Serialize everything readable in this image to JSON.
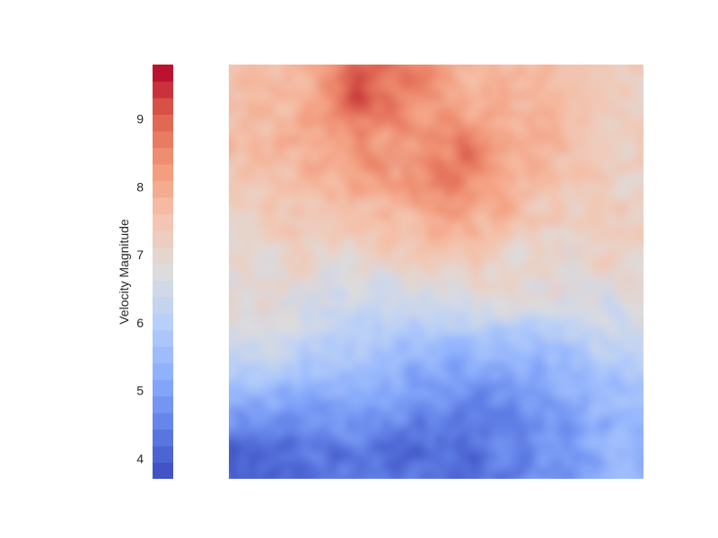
{
  "chart_data": {
    "type": "heatmap",
    "title": "",
    "xlabel": "",
    "ylabel": "",
    "colormap": "coolwarm",
    "value_range": [
      3.7,
      9.8
    ],
    "colorbar": {
      "label": "Velocity Magnitude",
      "ticks": [
        4,
        5,
        6,
        7,
        8,
        9
      ],
      "tick_labels": [
        "4",
        "5",
        "6",
        "7",
        "8",
        "9"
      ],
      "min": 3.7,
      "max": 9.8,
      "levels": 25
    },
    "grid": false,
    "grid_approx": {
      "rows": 8,
      "cols": 8,
      "orientation": "row 0 = top of image",
      "values": [
        [
          7.6,
          7.8,
          9.3,
          8.6,
          7.9,
          7.7,
          7.6,
          7.2
        ],
        [
          7.7,
          8.0,
          8.4,
          8.3,
          8.8,
          8.0,
          7.6,
          7.3
        ],
        [
          7.3,
          7.7,
          7.9,
          8.2,
          8.6,
          7.9,
          7.4,
          7.2
        ],
        [
          6.9,
          7.3,
          7.2,
          7.4,
          7.6,
          7.2,
          7.0,
          7.3
        ],
        [
          7.0,
          6.6,
          6.3,
          6.5,
          6.8,
          7.0,
          6.8,
          6.7
        ],
        [
          6.5,
          6.1,
          5.9,
          5.5,
          5.4,
          5.5,
          5.7,
          6.2
        ],
        [
          5.3,
          5.0,
          5.1,
          4.8,
          4.6,
          4.6,
          5.0,
          5.5
        ],
        [
          3.9,
          4.3,
          4.3,
          4.1,
          4.2,
          4.5,
          4.8,
          5.3
        ]
      ]
    }
  },
  "colors": {
    "cmap_low": "#3b4cc0",
    "cmap_mid": "#dddcdc",
    "cmap_high": "#b40426"
  }
}
